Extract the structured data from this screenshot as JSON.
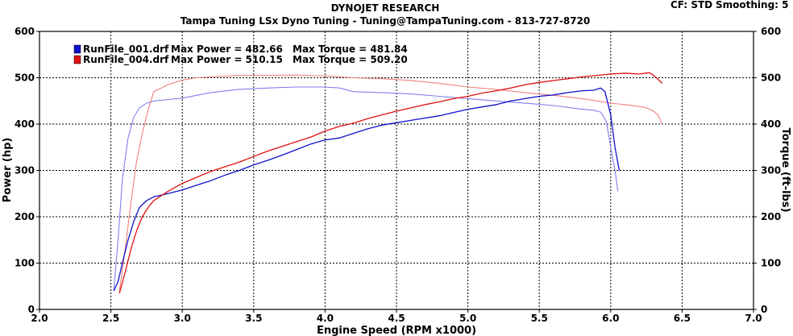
{
  "header": {
    "title": "DYNOJET RESEARCH",
    "subtitle": "Tampa Tuning LSx Dyno Tuning - Tuning@TampaTuning.com - 813-727-8720",
    "cf_label": "CF: STD",
    "smoothing_label": "Smoothing: 5"
  },
  "chart_data": {
    "type": "line",
    "title": "DYNOJET RESEARCH",
    "subtitle": "Tampa Tuning LSx Dyno Tuning - Tuning@TampaTuning.com - 813-727-8720",
    "xlabel": "Engine Speed (RPM x1000)",
    "ylabel_left": "Power (hp)",
    "ylabel_right": "Torque (ft-lbs)",
    "xlim": [
      2.0,
      7.0
    ],
    "ylim": [
      0,
      600
    ],
    "x_ticks": [
      "2.0",
      "2.5",
      "3.0",
      "3.5",
      "4.0",
      "4.5",
      "5.0",
      "5.5",
      "6.0",
      "6.5",
      "7.0"
    ],
    "y_ticks": [
      "0",
      "100",
      "200",
      "300",
      "400",
      "500",
      "600"
    ],
    "grid": true,
    "legend_position": "top-left",
    "colors": {
      "run1": "#1010cc",
      "run2": "#e01010",
      "run1_light": "#7f7fee",
      "run2_light": "#f08080"
    },
    "legend": [
      {
        "file": "RunFile_001.drf",
        "power_text": "Max Power = 482.66",
        "torque_text": "Max Torque = 481.84",
        "color": "#1010cc"
      },
      {
        "file": "RunFile_004.drf",
        "power_text": "Max Power = 510.15",
        "torque_text": "Max Torque = 509.20",
        "color": "#e01010"
      }
    ],
    "series": [
      {
        "name": "RunFile_001.drf",
        "measure": "power",
        "color": "#1010cc",
        "x": [
          2.52,
          2.55,
          2.58,
          2.62,
          2.66,
          2.7,
          2.75,
          2.8,
          2.9,
          3.0,
          3.1,
          3.2,
          3.3,
          3.4,
          3.5,
          3.6,
          3.7,
          3.8,
          3.9,
          4.0,
          4.1,
          4.2,
          4.3,
          4.4,
          4.5,
          4.6,
          4.7,
          4.8,
          4.9,
          5.0,
          5.1,
          5.2,
          5.3,
          5.4,
          5.5,
          5.6,
          5.7,
          5.8,
          5.88,
          5.93,
          5.96,
          6.0,
          6.03,
          6.06
        ],
        "y": [
          40,
          60,
          100,
          150,
          190,
          220,
          235,
          243,
          250,
          258,
          268,
          278,
          290,
          300,
          312,
          322,
          333,
          345,
          357,
          366,
          370,
          380,
          390,
          398,
          403,
          408,
          413,
          418,
          425,
          432,
          437,
          442,
          450,
          455,
          460,
          463,
          468,
          472,
          473,
          478,
          470,
          420,
          350,
          300
        ]
      },
      {
        "name": "RunFile_001.drf",
        "measure": "torque",
        "color": "#7f7fee",
        "x": [
          2.52,
          2.55,
          2.58,
          2.62,
          2.66,
          2.7,
          2.75,
          2.8,
          2.9,
          3.0,
          3.1,
          3.2,
          3.4,
          3.6,
          3.8,
          4.0,
          4.1,
          4.2,
          4.4,
          4.6,
          4.8,
          5.0,
          5.2,
          5.4,
          5.6,
          5.8,
          5.88,
          5.93,
          5.97,
          6.0,
          6.03,
          6.05
        ],
        "y": [
          40,
          150,
          280,
          370,
          415,
          435,
          445,
          450,
          453,
          456,
          462,
          468,
          475,
          478,
          480,
          480,
          478,
          470,
          468,
          465,
          460,
          455,
          450,
          445,
          440,
          432,
          430,
          426,
          405,
          350,
          300,
          255
        ]
      },
      {
        "name": "RunFile_004.drf",
        "measure": "power",
        "color": "#e01010",
        "x": [
          2.56,
          2.6,
          2.64,
          2.68,
          2.72,
          2.76,
          2.8,
          2.9,
          3.0,
          3.1,
          3.2,
          3.3,
          3.4,
          3.5,
          3.6,
          3.7,
          3.8,
          3.9,
          4.0,
          4.1,
          4.2,
          4.3,
          4.4,
          4.5,
          4.6,
          4.7,
          4.8,
          4.9,
          5.0,
          5.1,
          5.2,
          5.3,
          5.4,
          5.5,
          5.6,
          5.7,
          5.8,
          5.9,
          6.0,
          6.1,
          6.2,
          6.27,
          6.3,
          6.33,
          6.36
        ],
        "y": [
          35,
          80,
          130,
          170,
          200,
          220,
          235,
          255,
          272,
          285,
          298,
          308,
          318,
          330,
          342,
          352,
          362,
          372,
          385,
          395,
          402,
          412,
          420,
          428,
          435,
          442,
          448,
          455,
          460,
          467,
          472,
          478,
          485,
          490,
          494,
          498,
          502,
          505,
          508,
          510,
          508,
          511,
          505,
          497,
          488
        ]
      },
      {
        "name": "RunFile_004.drf",
        "measure": "torque",
        "color": "#f08080",
        "x": [
          2.56,
          2.6,
          2.64,
          2.68,
          2.72,
          2.76,
          2.8,
          2.9,
          3.0,
          3.1,
          3.2,
          3.4,
          3.6,
          3.8,
          4.0,
          4.2,
          4.4,
          4.6,
          4.8,
          5.0,
          5.2,
          5.4,
          5.6,
          5.8,
          6.0,
          6.1,
          6.2,
          6.25,
          6.3,
          6.33,
          6.36
        ],
        "y": [
          40,
          130,
          230,
          320,
          380,
          430,
          470,
          485,
          495,
          500,
          502,
          505,
          505,
          506,
          504,
          500,
          498,
          494,
          488,
          480,
          475,
          468,
          462,
          455,
          445,
          442,
          438,
          435,
          428,
          420,
          400
        ]
      }
    ]
  }
}
